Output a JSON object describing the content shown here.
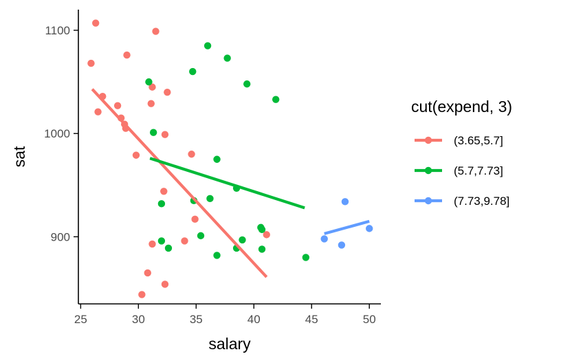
{
  "chart_data": {
    "type": "scatter",
    "title": "",
    "xlabel": "salary",
    "ylabel": "sat",
    "xlim": [
      24.8,
      51.0
    ],
    "ylim": [
      835,
      1120
    ],
    "x_ticks": [
      25,
      30,
      35,
      40,
      45,
      50
    ],
    "y_ticks": [
      900,
      1000,
      1100
    ],
    "x_tick_labels": [
      "25",
      "30",
      "35",
      "40",
      "45",
      "50"
    ],
    "y_tick_labels": [
      "900",
      "1000",
      "1100"
    ],
    "grid": false,
    "legend": {
      "title": "cut(expend, 3)",
      "position": "right"
    },
    "series": [
      {
        "name": "(3.65,5.7]",
        "color": "#F8766D",
        "points": [
          {
            "x": 26.3,
            "y": 1107
          },
          {
            "x": 31.5,
            "y": 1099
          },
          {
            "x": 25.9,
            "y": 1068
          },
          {
            "x": 29.0,
            "y": 1076
          },
          {
            "x": 26.9,
            "y": 1036
          },
          {
            "x": 26.5,
            "y": 1021
          },
          {
            "x": 28.2,
            "y": 1027
          },
          {
            "x": 28.5,
            "y": 1015
          },
          {
            "x": 28.8,
            "y": 1009
          },
          {
            "x": 28.9,
            "y": 1005
          },
          {
            "x": 31.2,
            "y": 1045
          },
          {
            "x": 31.1,
            "y": 1029
          },
          {
            "x": 32.5,
            "y": 1040
          },
          {
            "x": 32.3,
            "y": 999
          },
          {
            "x": 29.8,
            "y": 979
          },
          {
            "x": 34.6,
            "y": 980
          },
          {
            "x": 32.2,
            "y": 944
          },
          {
            "x": 34.9,
            "y": 917
          },
          {
            "x": 31.2,
            "y": 893
          },
          {
            "x": 34.0,
            "y": 896
          },
          {
            "x": 41.1,
            "y": 902
          },
          {
            "x": 30.8,
            "y": 865
          },
          {
            "x": 32.3,
            "y": 854
          },
          {
            "x": 30.3,
            "y": 844
          }
        ],
        "fit": {
          "x": [
            26.0,
            41.1
          ],
          "y": [
            1043,
            861
          ]
        }
      },
      {
        "name": "(5.7,7.73]",
        "color": "#00BA38",
        "points": [
          {
            "x": 36.0,
            "y": 1085
          },
          {
            "x": 37.7,
            "y": 1073
          },
          {
            "x": 34.7,
            "y": 1060
          },
          {
            "x": 30.9,
            "y": 1050
          },
          {
            "x": 39.4,
            "y": 1048
          },
          {
            "x": 41.9,
            "y": 1033
          },
          {
            "x": 31.3,
            "y": 1001
          },
          {
            "x": 36.8,
            "y": 975
          },
          {
            "x": 38.5,
            "y": 947
          },
          {
            "x": 36.2,
            "y": 937
          },
          {
            "x": 34.8,
            "y": 935
          },
          {
            "x": 32.0,
            "y": 932
          },
          {
            "x": 40.6,
            "y": 909
          },
          {
            "x": 40.7,
            "y": 907
          },
          {
            "x": 35.4,
            "y": 901
          },
          {
            "x": 39.0,
            "y": 897
          },
          {
            "x": 32.0,
            "y": 896
          },
          {
            "x": 32.6,
            "y": 889
          },
          {
            "x": 38.5,
            "y": 889
          },
          {
            "x": 40.7,
            "y": 888
          },
          {
            "x": 36.8,
            "y": 882
          },
          {
            "x": 44.5,
            "y": 880
          }
        ],
        "fit": {
          "x": [
            31.0,
            44.4
          ],
          "y": [
            976,
            928
          ]
        }
      },
      {
        "name": "(7.73,9.78]",
        "color": "#619CFF",
        "points": [
          {
            "x": 47.9,
            "y": 934
          },
          {
            "x": 50.0,
            "y": 908
          },
          {
            "x": 46.1,
            "y": 898
          },
          {
            "x": 47.6,
            "y": 892
          }
        ],
        "fit": {
          "x": [
            46.1,
            50.0
          ],
          "y": [
            903,
            915
          ]
        }
      }
    ]
  }
}
